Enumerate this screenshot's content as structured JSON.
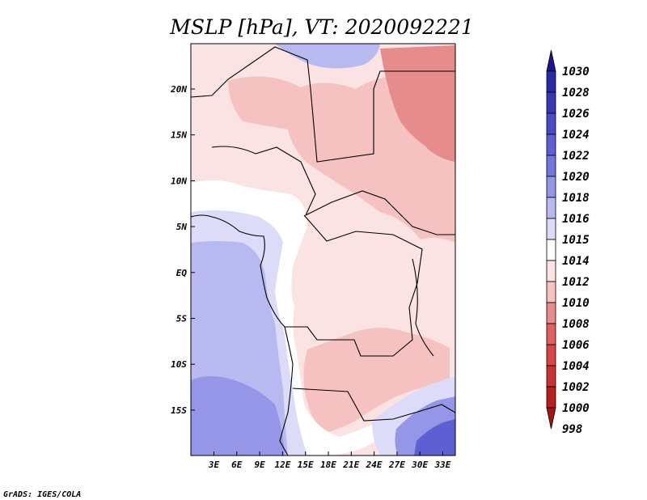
{
  "chart_data": {
    "type": "heatmap",
    "title": "MSLP [hPa], VT: 2020092221",
    "x_ticks": [
      "3E",
      "6E",
      "9E",
      "12E",
      "15E",
      "18E",
      "21E",
      "24E",
      "27E",
      "30E",
      "33E"
    ],
    "y_ticks": [
      "20N",
      "15N",
      "10N",
      "5N",
      "EQ",
      "5S",
      "10S",
      "15S"
    ],
    "colorbar": {
      "labels": [
        "1030",
        "1028",
        "1026",
        "1024",
        "1022",
        "1020",
        "1018",
        "1016",
        "1015",
        "1014",
        "1012",
        "1010",
        "1008",
        "1006",
        "1004",
        "1002",
        "1000",
        "998"
      ],
      "colors": [
        "#1f1591",
        "#2a2aa6",
        "#3838b7",
        "#4a4ac6",
        "#5f5fd4",
        "#7676df",
        "#9696e8",
        "#b9b9f2",
        "#dcdcf8",
        "#ffffff",
        "#fbe3e3",
        "#f6c1c1",
        "#e68c8c",
        "#e06060",
        "#d94646",
        "#c93232",
        "#b81f1f",
        "#a31515"
      ]
    },
    "credit": "GrADS: IGES/COLA"
  }
}
